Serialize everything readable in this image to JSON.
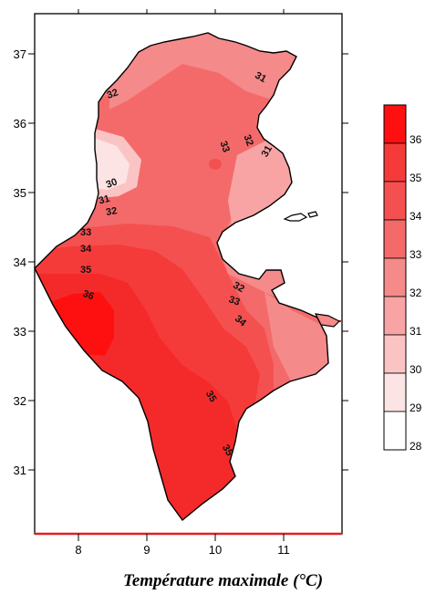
{
  "map": {
    "x_axis_ticks": [
      "8",
      "9",
      "10",
      "11"
    ],
    "y_axis_ticks": [
      "37",
      "36",
      "35",
      "34",
      "33",
      "32",
      "31"
    ],
    "contour_labels": [
      "31",
      "32",
      "33",
      "32",
      "31",
      "30",
      "31",
      "32",
      "33",
      "34",
      "35",
      "36",
      "32",
      "33",
      "34",
      "35",
      "35"
    ]
  },
  "legend": {
    "levels": [
      "36",
      "35",
      "34",
      "33",
      "32",
      "31",
      "30",
      "29",
      "28"
    ],
    "colors": [
      "#ff1010",
      "#f53a3a",
      "#f55050",
      "#f46a6a",
      "#f58a8a",
      "#f8a4a4",
      "#fbc4c4",
      "#fde4e4",
      "#ffffff"
    ]
  },
  "caption": "Température maximale (°C)"
}
